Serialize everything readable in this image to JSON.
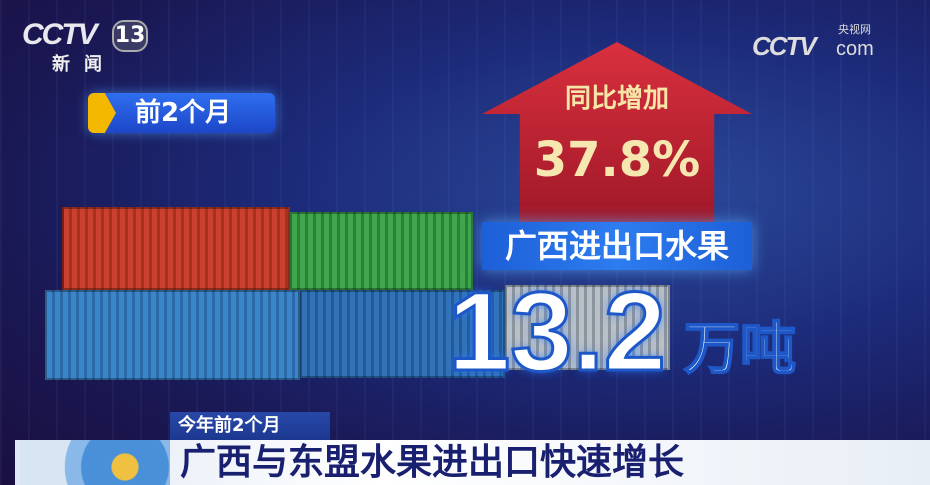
{
  "channel_logo": {
    "brand": "CCTV",
    "number": "13",
    "name": "新闻"
  },
  "site_logo": {
    "brand": "CCTV",
    "cn": "央视网",
    "domain": "com"
  },
  "period_label": "前2个月",
  "growth": {
    "label": "同比增加",
    "value": "37.8%",
    "color": "#c8213a"
  },
  "subject": "广西进出口水果",
  "amount": {
    "value": "13.2",
    "unit": "万吨"
  },
  "caption": {
    "sub": "今年前2个月",
    "headline": "广西与东盟水果进出口快速增长"
  }
}
